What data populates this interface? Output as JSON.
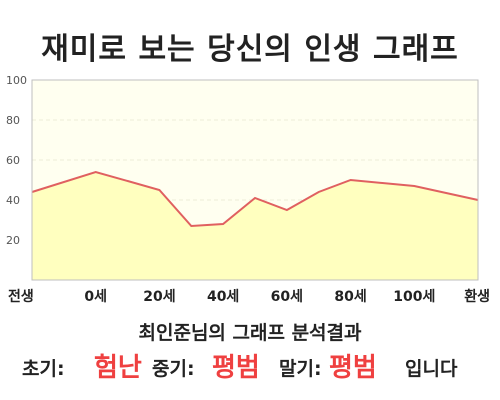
{
  "title": "재미로 보는 당신의 인생 그래프",
  "chart_data": {
    "type": "area",
    "x_categories": [
      "전생",
      "0세",
      "20세",
      "40세",
      "60세",
      "80세",
      "100세",
      "환생"
    ],
    "ylim": [
      0,
      100
    ],
    "yticks": [
      "100",
      "80",
      "60",
      "40",
      "20"
    ],
    "points": [
      {
        "x": -20,
        "y": 44
      },
      {
        "x": 0,
        "y": 54
      },
      {
        "x": 20,
        "y": 45
      },
      {
        "x": 30,
        "y": 27
      },
      {
        "x": 40,
        "y": 28
      },
      {
        "x": 50,
        "y": 41
      },
      {
        "x": 60,
        "y": 35
      },
      {
        "x": 70,
        "y": 44
      },
      {
        "x": 80,
        "y": 50
      },
      {
        "x": 100,
        "y": 47
      },
      {
        "x": 120,
        "y": 40
      }
    ],
    "grid": true,
    "colors": {
      "line": "#e06060",
      "fill": "#ffffbf",
      "plot_bg": "#fffff0",
      "grid": "#ececd8"
    }
  },
  "result": {
    "subtitle": "최인준님의 그래프 분석결과",
    "early_label": "초기:",
    "early_value": "험난",
    "mid_label": "중기:",
    "mid_value": "평범",
    "late_label": "말기:",
    "late_value": "평범",
    "ending": "입니다"
  }
}
